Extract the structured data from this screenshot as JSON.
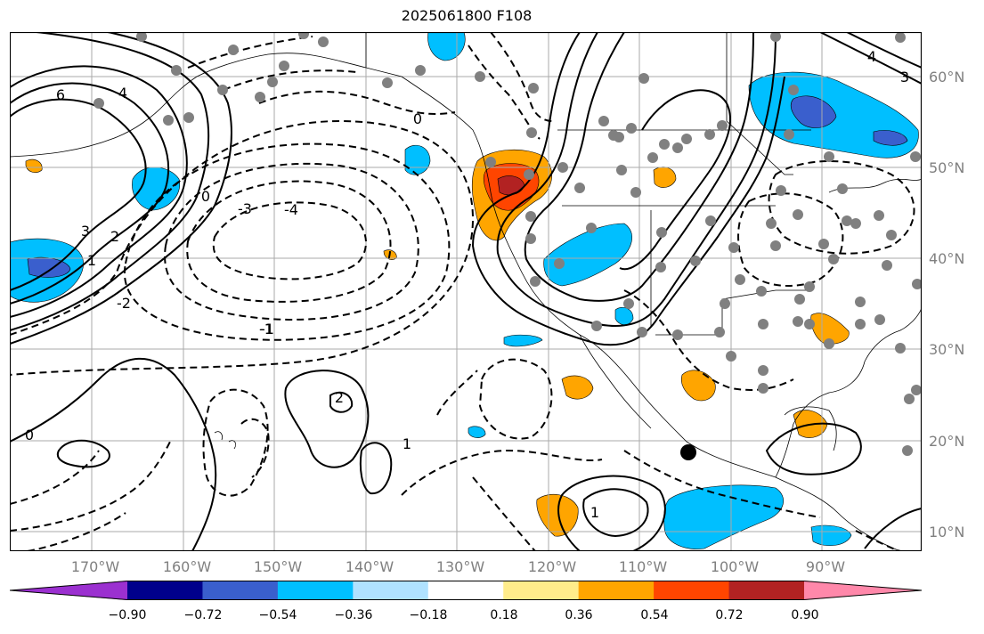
{
  "title": "2025061800 F108",
  "lon_labels": [
    "170°W",
    "160°W",
    "150°W",
    "140°W",
    "130°W",
    "120°W",
    "110°W",
    "100°W",
    "90°W"
  ],
  "lat_labels": [
    "60°N",
    "50°N",
    "40°N",
    "30°N",
    "20°N",
    "10°N"
  ],
  "colorbar": {
    "tick_labels": [
      "−0.90",
      "−0.72",
      "−0.54",
      "−0.36",
      "−0.18",
      "0.18",
      "0.36",
      "0.54",
      "0.72",
      "0.90"
    ],
    "colors": [
      "#9b30d0",
      "#00008b",
      "#3a5fcd",
      "#00bfff",
      "#b0e2ff",
      "#ffffff",
      "#ffec8b",
      "#ffa500",
      "#ff4500",
      "#b22222",
      "#ff88aa"
    ]
  },
  "contour_labels": [
    {
      "text": "6"
    },
    {
      "text": "4"
    },
    {
      "text": "3"
    },
    {
      "text": "2"
    },
    {
      "text": "1"
    },
    {
      "text": "0"
    },
    {
      "text": "-1"
    },
    {
      "text": "-2"
    },
    {
      "text": "-3"
    },
    {
      "text": "-4"
    },
    {
      "text": "2"
    },
    {
      "text": "1"
    },
    {
      "text": "0"
    },
    {
      "text": "-1"
    },
    {
      "text": "4"
    },
    {
      "text": "3"
    },
    {
      "text": "0"
    },
    {
      "text": "1"
    }
  ],
  "colors": {
    "grid": "#aaaaaa",
    "axis_text": "#808080",
    "marker": "#808080"
  }
}
